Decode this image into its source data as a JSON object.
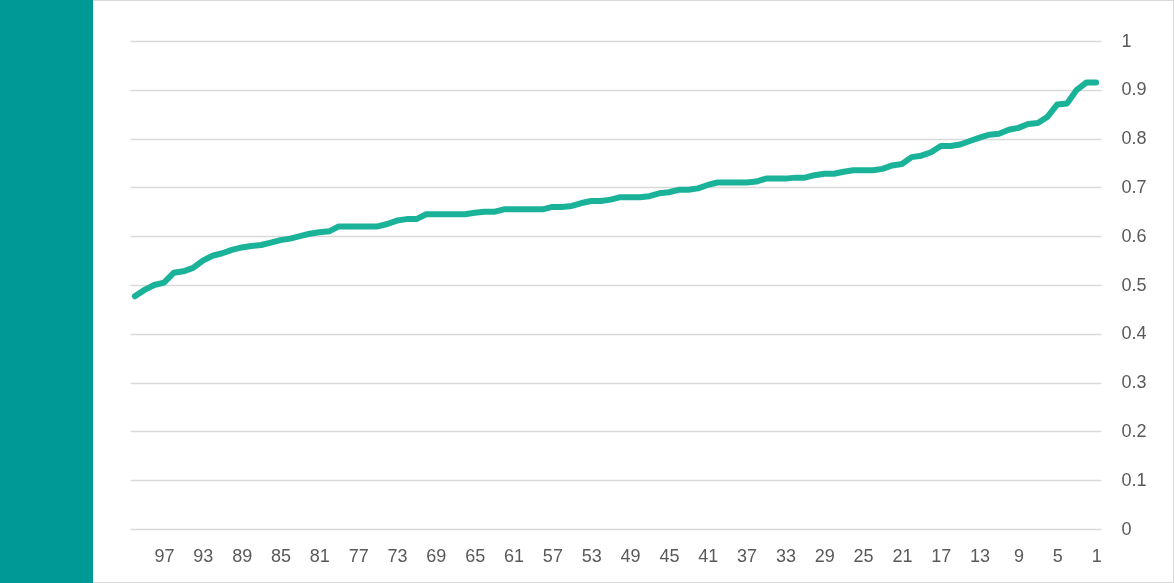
{
  "chart_data": {
    "type": "line",
    "color": "#1ab39a",
    "grid": "y",
    "ylim": [
      0,
      1
    ],
    "yticks": [
      0,
      0.1,
      0.2,
      0.3,
      0.4,
      0.5,
      0.6,
      0.7,
      0.8,
      0.9,
      1
    ],
    "categories": [
      null,
      null,
      null,
      "97",
      null,
      null,
      null,
      "93",
      null,
      null,
      null,
      "89",
      null,
      null,
      null,
      "85",
      null,
      null,
      null,
      "81",
      null,
      null,
      null,
      "77",
      null,
      null,
      null,
      "73",
      null,
      null,
      null,
      "69",
      null,
      null,
      null,
      "65",
      null,
      null,
      null,
      "61",
      null,
      null,
      null,
      "57",
      null,
      null,
      null,
      "53",
      null,
      null,
      null,
      "49",
      null,
      null,
      null,
      "45",
      null,
      null,
      null,
      "41",
      null,
      null,
      null,
      "37",
      null,
      null,
      null,
      "33",
      null,
      null,
      null,
      "29",
      null,
      null,
      null,
      "25",
      null,
      null,
      null,
      "21",
      null,
      null,
      null,
      "17",
      null,
      null,
      null,
      "13",
      null,
      null,
      null,
      "9",
      null,
      null,
      null,
      "5",
      null,
      null,
      null,
      "1"
    ],
    "values": [
      0.477,
      0.49,
      0.5,
      0.505,
      0.525,
      0.528,
      0.535,
      0.55,
      0.56,
      0.565,
      0.572,
      0.577,
      0.58,
      0.582,
      0.587,
      0.592,
      0.595,
      0.6,
      0.605,
      0.608,
      0.61,
      0.62,
      0.62,
      0.62,
      0.62,
      0.62,
      0.625,
      0.632,
      0.635,
      0.635,
      0.645,
      0.645,
      0.645,
      0.645,
      0.645,
      0.648,
      0.65,
      0.65,
      0.655,
      0.655,
      0.655,
      0.655,
      0.655,
      0.66,
      0.66,
      0.662,
      0.668,
      0.672,
      0.672,
      0.675,
      0.68,
      0.68,
      0.68,
      0.682,
      0.688,
      0.69,
      0.695,
      0.695,
      0.698,
      0.705,
      0.71,
      0.71,
      0.71,
      0.71,
      0.712,
      0.718,
      0.718,
      0.718,
      0.72,
      0.72,
      0.725,
      0.728,
      0.728,
      0.732,
      0.735,
      0.735,
      0.735,
      0.738,
      0.745,
      0.748,
      0.762,
      0.765,
      0.772,
      0.785,
      0.785,
      0.788,
      0.795,
      0.802,
      0.808,
      0.81,
      0.818,
      0.822,
      0.83,
      0.832,
      0.845,
      0.87,
      0.872,
      0.9,
      0.915,
      0.915
    ]
  }
}
